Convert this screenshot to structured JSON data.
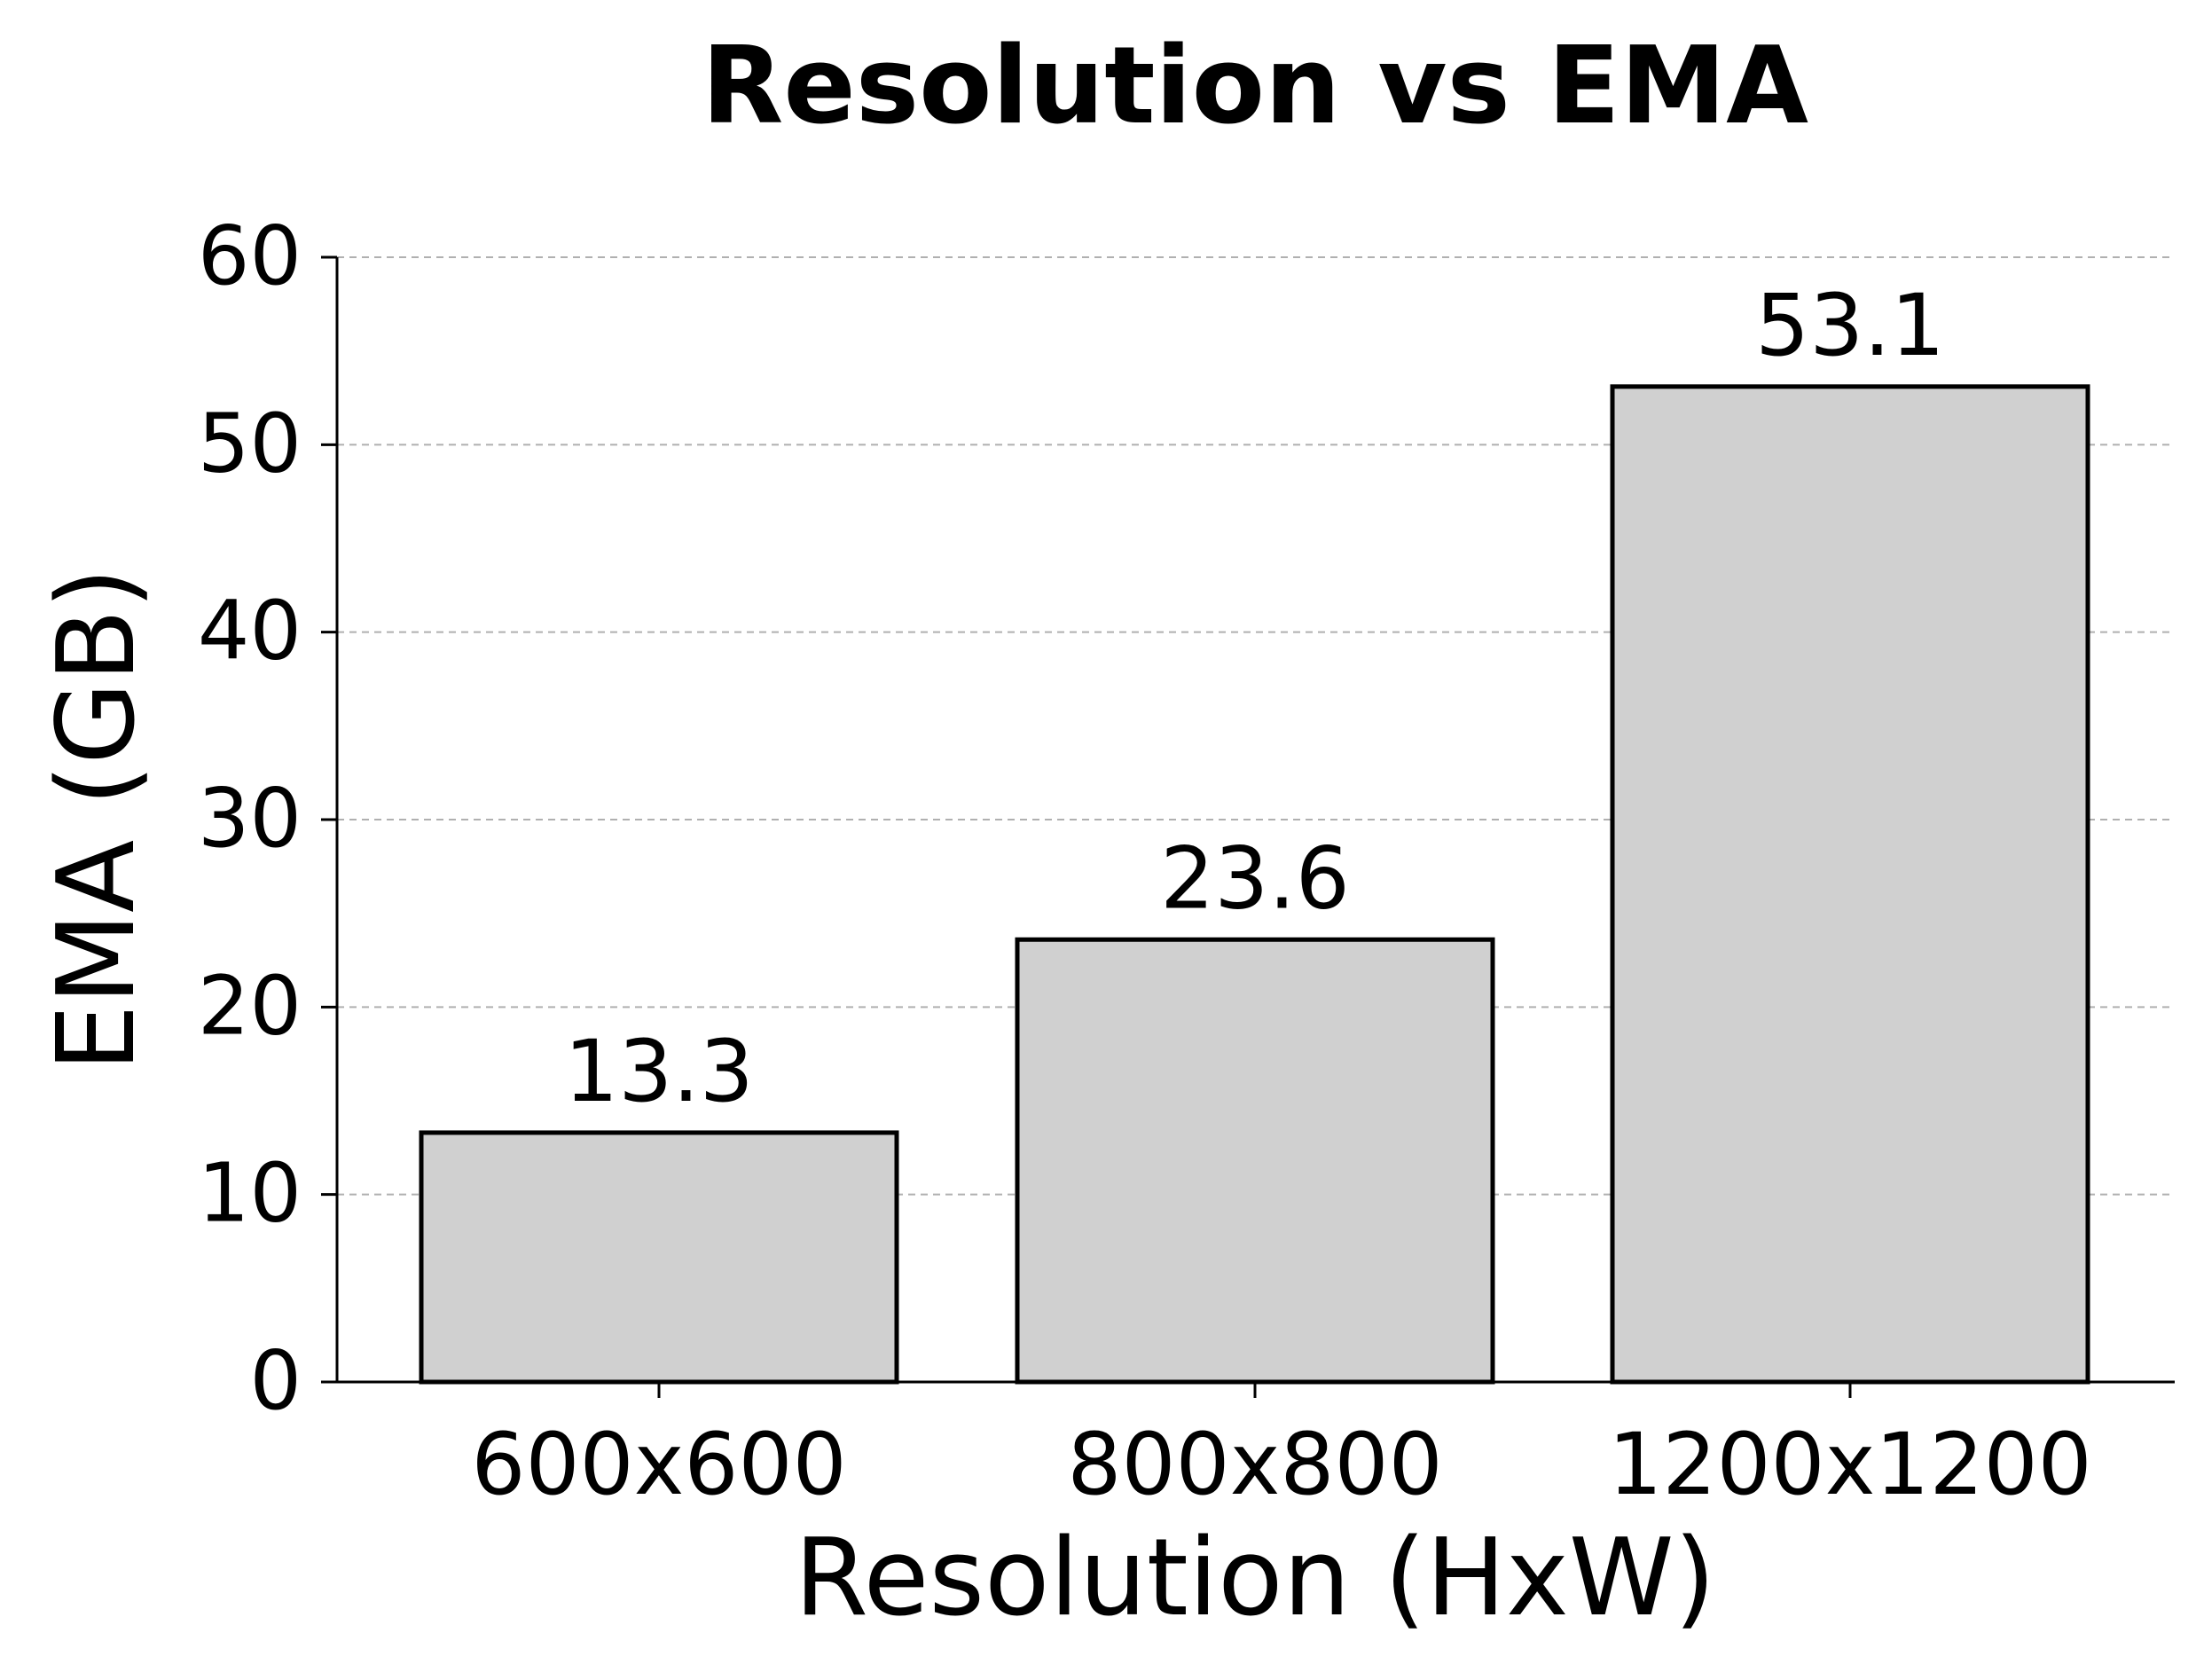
{
  "chart_data": {
    "type": "bar",
    "title": "Resolution vs EMA",
    "xlabel": "Resolution (HxW)",
    "ylabel": "EMA (GB)",
    "categories": [
      "600x600",
      "800x800",
      "1200x1200"
    ],
    "values": [
      13.3,
      23.6,
      53.1
    ],
    "data_labels": [
      "13.3",
      "23.6",
      "53.1"
    ],
    "ylim": [
      0,
      60
    ],
    "yticks": [
      0,
      10,
      20,
      30,
      40,
      50,
      60
    ],
    "ytick_labels": [
      "0",
      "10",
      "20",
      "30",
      "40",
      "50",
      "60"
    ],
    "grid": "y-dashed",
    "bar_fill": "#d0d0d0",
    "bar_edge": "#000000",
    "grid_color": "#b0b0b0"
  }
}
